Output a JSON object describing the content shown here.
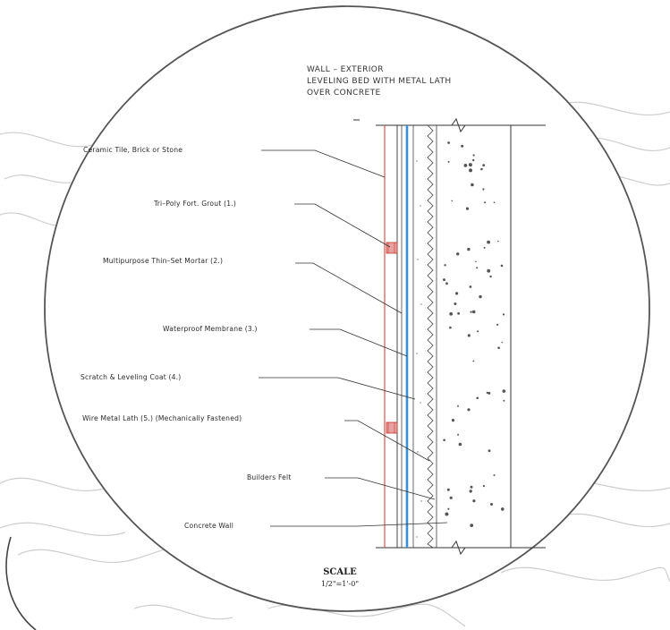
{
  "title": {
    "lines": [
      "WALL  –  EXTERIOR",
      "LEVELING BED WITH METAL LATH",
      "OVER CONCRETE"
    ]
  },
  "labels": [
    "Ceramic Tile, Brick or Stone",
    "Tri–Poly Fort. Grout (1.)",
    "Multipurpose Thin–Set Mortar (2.)",
    "Waterproof Membrane (3.)",
    "Scratch & Leveling Coat  (4.)",
    "Wire Metal Lath (5.) (Mechanically Fastened)",
    "Builders Felt",
    "Concrete Wall"
  ],
  "scale": {
    "title": "SCALE",
    "value": "1/2\"=1'-0\""
  },
  "colors": {
    "tile_line": "#d9534f",
    "membrane": "#3a8fd6",
    "grout": "#c0392b",
    "ink": "#333333",
    "sketch": "#b5b5b5"
  }
}
